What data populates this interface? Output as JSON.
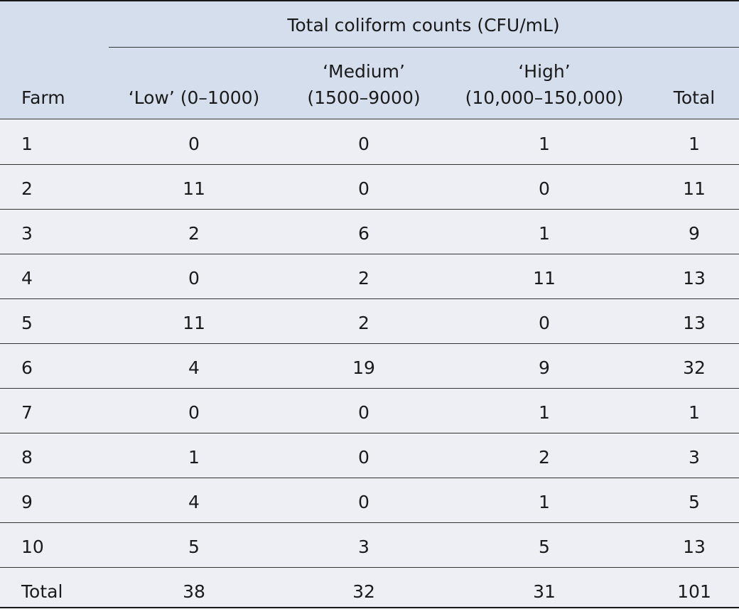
{
  "table": {
    "group_header": "Total coliform counts (CFU/mL)",
    "columns": [
      {
        "line1": "",
        "line2": "Farm"
      },
      {
        "line1": "",
        "line2": "‘Low’ (0–1000)"
      },
      {
        "line1": "‘Medium’",
        "line2": "(1500–9000)"
      },
      {
        "line1": "‘High’",
        "line2": "(10,000–150,000)"
      },
      {
        "line1": "",
        "line2": "Total"
      }
    ],
    "rows": [
      [
        "1",
        "0",
        "0",
        "1",
        "1"
      ],
      [
        "2",
        "11",
        "0",
        "0",
        "11"
      ],
      [
        "3",
        "2",
        "6",
        "1",
        "9"
      ],
      [
        "4",
        "0",
        "2",
        "11",
        "13"
      ],
      [
        "5",
        "11",
        "2",
        "0",
        "13"
      ],
      [
        "6",
        "4",
        "19",
        "9",
        "32"
      ],
      [
        "7",
        "0",
        "0",
        "1",
        "1"
      ],
      [
        "8",
        "1",
        "0",
        "2",
        "3"
      ],
      [
        "9",
        "4",
        "0",
        "1",
        "5"
      ],
      [
        "10",
        "5",
        "3",
        "5",
        "13"
      ],
      [
        "Total",
        "38",
        "32",
        "31",
        "101"
      ]
    ]
  }
}
